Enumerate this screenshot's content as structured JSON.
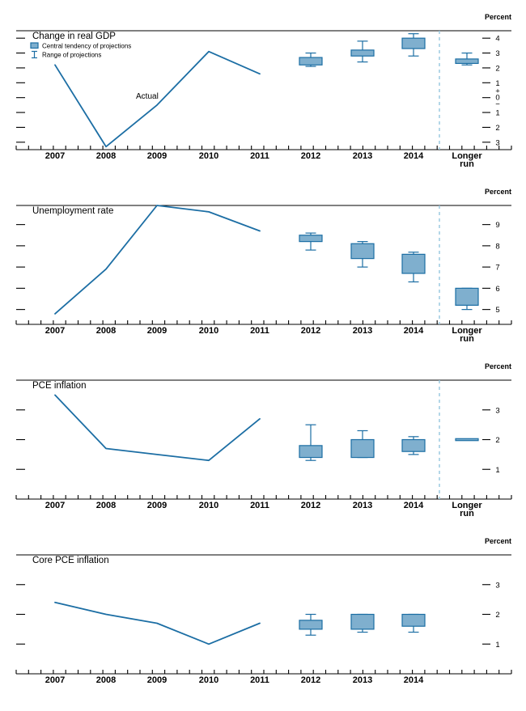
{
  "colors": {
    "line": "#1c6ea4",
    "box_fill": "#7fafce",
    "box_stroke": "#1c6ea4",
    "separator": "#94c6de",
    "axis": "#000000"
  },
  "chart_data": [
    {
      "id": "change-in-real-gdp",
      "type": "line",
      "title": "Change in real GDP",
      "unit_label": "Percent",
      "x_categories": [
        "2007",
        "2008",
        "2009",
        "2010",
        "2011",
        "2012",
        "2013",
        "2014",
        "Longer run"
      ],
      "actual": {
        "label": "Actual",
        "years": [
          2007,
          2008,
          2009,
          2010,
          2011
        ],
        "values": [
          2.2,
          -3.3,
          -0.5,
          3.1,
          1.6
        ]
      },
      "projections": [
        {
          "period": "2012",
          "central": [
            2.2,
            2.7
          ],
          "range": [
            2.1,
            3.0
          ]
        },
        {
          "period": "2013",
          "central": [
            2.8,
            3.2
          ],
          "range": [
            2.4,
            3.8
          ]
        },
        {
          "period": "2014",
          "central": [
            3.3,
            4.0
          ],
          "range": [
            2.8,
            4.3
          ]
        },
        {
          "period": "Longer run",
          "central": [
            2.3,
            2.6
          ],
          "range": [
            2.2,
            3.0
          ]
        }
      ],
      "ylim": [
        -3.5,
        4.5
      ],
      "yticks": [
        {
          "value": 4,
          "label": "4"
        },
        {
          "value": 3,
          "label": "3"
        },
        {
          "value": 2,
          "label": "2"
        },
        {
          "value": 1,
          "label": "1"
        },
        {
          "value": 0,
          "label": "0",
          "plus_minus": true
        },
        {
          "value": -1,
          "label": "1"
        },
        {
          "value": -2,
          "label": "2"
        },
        {
          "value": -3,
          "label": "3"
        }
      ],
      "longer_run_separator": true,
      "legend": {
        "central_tendency_label": "Central tendency of projections",
        "range_label": "Range of projections"
      }
    },
    {
      "id": "unemployment-rate",
      "type": "line",
      "title": "Unemployment rate",
      "unit_label": "Percent",
      "x_categories": [
        "2007",
        "2008",
        "2009",
        "2010",
        "2011",
        "2012",
        "2013",
        "2014",
        "Longer run"
      ],
      "actual": {
        "years": [
          2007,
          2008,
          2009,
          2010,
          2011
        ],
        "values": [
          4.8,
          6.9,
          9.9,
          9.6,
          8.7
        ]
      },
      "projections": [
        {
          "period": "2012",
          "central": [
            8.2,
            8.5
          ],
          "range": [
            7.8,
            8.6
          ]
        },
        {
          "period": "2013",
          "central": [
            7.4,
            8.1
          ],
          "range": [
            7.0,
            8.2
          ]
        },
        {
          "period": "2014",
          "central": [
            6.7,
            7.6
          ],
          "range": [
            6.3,
            7.7
          ]
        },
        {
          "period": "Longer run",
          "central": [
            5.2,
            6.0
          ],
          "range": [
            5.0,
            6.0
          ]
        }
      ],
      "ylim": [
        4.3,
        9.9
      ],
      "yticks": [
        {
          "value": 9,
          "label": "9"
        },
        {
          "value": 8,
          "label": "8"
        },
        {
          "value": 7,
          "label": "7"
        },
        {
          "value": 6,
          "label": "6"
        },
        {
          "value": 5,
          "label": "5"
        }
      ],
      "longer_run_separator": true
    },
    {
      "id": "pce-inflation",
      "type": "line",
      "title": "PCE inflation",
      "unit_label": "Percent",
      "x_categories": [
        "2007",
        "2008",
        "2009",
        "2010",
        "2011",
        "2012",
        "2013",
        "2014",
        "Longer run"
      ],
      "actual": {
        "years": [
          2007,
          2008,
          2009,
          2010,
          2011
        ],
        "values": [
          3.5,
          1.7,
          1.5,
          1.3,
          2.7
        ]
      },
      "projections": [
        {
          "period": "2012",
          "central": [
            1.4,
            1.8
          ],
          "range": [
            1.3,
            2.5
          ]
        },
        {
          "period": "2013",
          "central": [
            1.4,
            2.0
          ],
          "range": [
            1.4,
            2.3
          ]
        },
        {
          "period": "2014",
          "central": [
            1.6,
            2.0
          ],
          "range": [
            1.5,
            2.1
          ]
        },
        {
          "period": "Longer run",
          "central": [
            2.0,
            2.0
          ],
          "range": [
            2.0,
            2.0
          ]
        }
      ],
      "ylim": [
        0,
        4
      ],
      "yticks": [
        {
          "value": 3,
          "label": "3"
        },
        {
          "value": 2,
          "label": "2"
        },
        {
          "value": 1,
          "label": "1"
        }
      ],
      "longer_run_separator": true
    },
    {
      "id": "core-pce-inflation",
      "type": "line",
      "title": "Core PCE inflation",
      "unit_label": "Percent",
      "x_categories": [
        "2007",
        "2008",
        "2009",
        "2010",
        "2011",
        "2012",
        "2013",
        "2014"
      ],
      "actual": {
        "years": [
          2007,
          2008,
          2009,
          2010,
          2011
        ],
        "values": [
          2.4,
          2.0,
          1.7,
          1.0,
          1.7
        ]
      },
      "projections": [
        {
          "period": "2012",
          "central": [
            1.5,
            1.8
          ],
          "range": [
            1.3,
            2.0
          ]
        },
        {
          "period": "2013",
          "central": [
            1.5,
            2.0
          ],
          "range": [
            1.4,
            2.0
          ]
        },
        {
          "period": "2014",
          "central": [
            1.6,
            2.0
          ],
          "range": [
            1.4,
            2.0
          ]
        }
      ],
      "ylim": [
        0,
        4
      ],
      "yticks": [
        {
          "value": 3,
          "label": "3"
        },
        {
          "value": 2,
          "label": "2"
        },
        {
          "value": 1,
          "label": "1"
        }
      ],
      "longer_run_separator": false
    }
  ]
}
